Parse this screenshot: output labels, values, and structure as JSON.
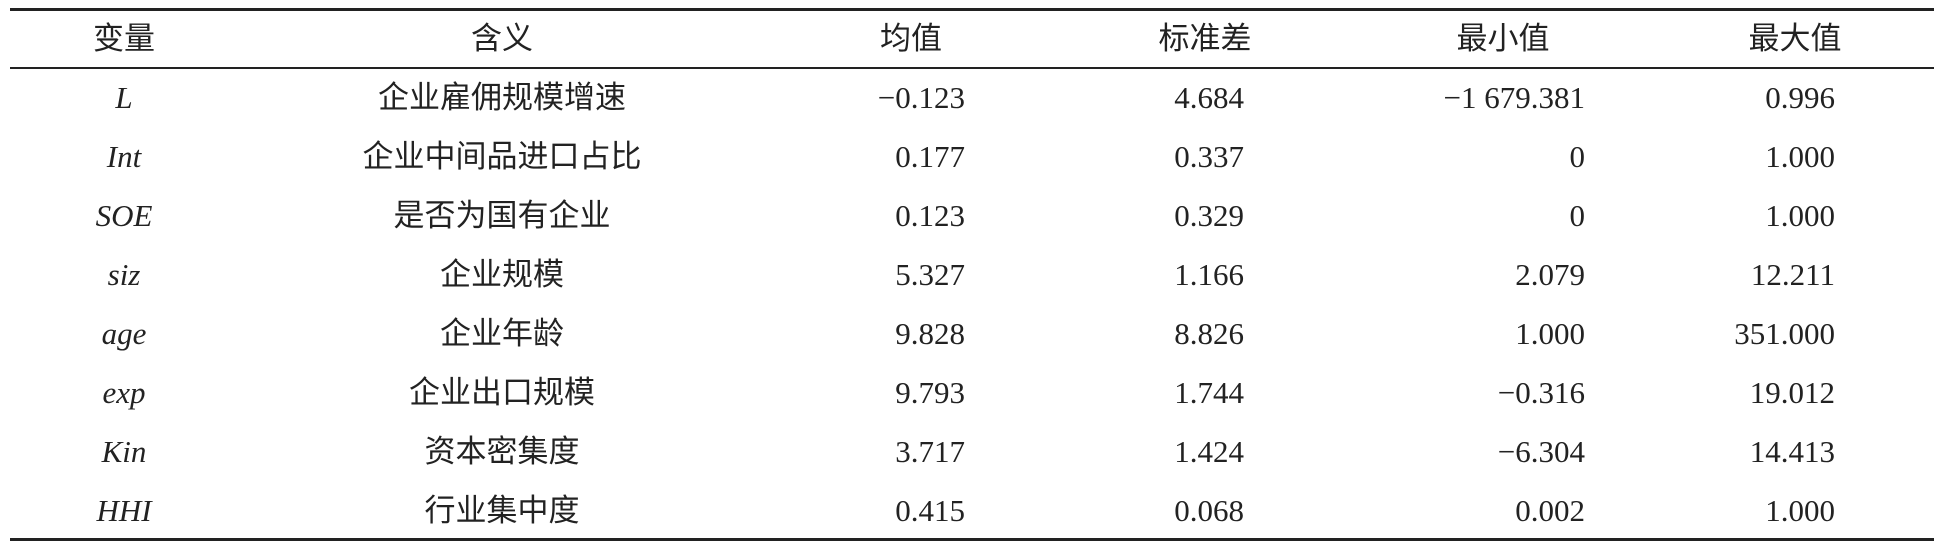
{
  "table": {
    "header": [
      "变量",
      "含义",
      "均值",
      "标准差",
      "最小值",
      "最大值"
    ],
    "rows": [
      [
        "L",
        "企业雇佣规模增速",
        "−0.123",
        "4.684",
        "−1 679.381",
        "0.996"
      ],
      [
        "Int",
        "企业中间品进口占比",
        "0.177",
        "0.337",
        "0",
        "1.000"
      ],
      [
        "SOE",
        "是否为国有企业",
        "0.123",
        "0.329",
        "0",
        "1.000"
      ],
      [
        "siz",
        "企业规模",
        "5.327",
        "1.166",
        "2.079",
        "12.211"
      ],
      [
        "age",
        "企业年龄",
        "9.828",
        "8.826",
        "1.000",
        "351.000"
      ],
      [
        "exp",
        "企业出口规模",
        "9.793",
        "1.744",
        "−0.316",
        "19.012"
      ],
      [
        "Kin",
        "资本密集度",
        "3.717",
        "1.424",
        "−6.304",
        "14.413"
      ],
      [
        "HHI",
        "行业集中度",
        "0.415",
        "0.068",
        "0.002",
        "1.000"
      ]
    ]
  }
}
